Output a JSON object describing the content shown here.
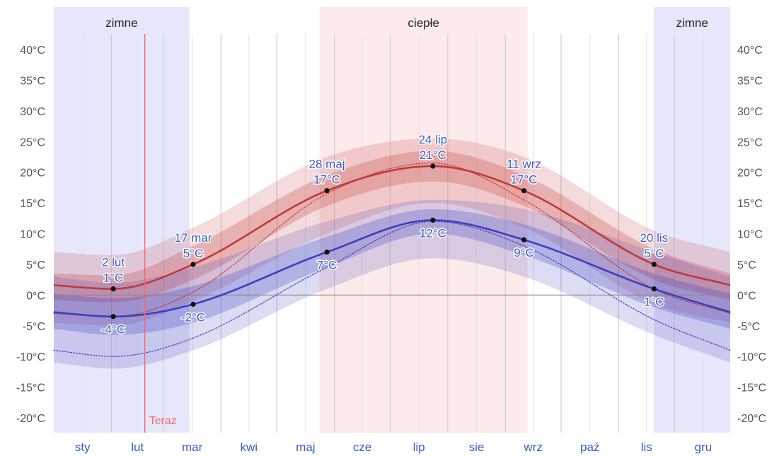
{
  "chart_data": {
    "type": "area",
    "x_unit": "day_of_year",
    "ylim": [
      -22,
      42
    ],
    "y_ticks": [
      {
        "v": 40,
        "label": "40°C"
      },
      {
        "v": 35,
        "label": "35°C"
      },
      {
        "v": 30,
        "label": "30°C"
      },
      {
        "v": 25,
        "label": "25°C"
      },
      {
        "v": 20,
        "label": "20°C"
      },
      {
        "v": 15,
        "label": "15°C"
      },
      {
        "v": 10,
        "label": "10°C"
      },
      {
        "v": 5,
        "label": "5°C"
      },
      {
        "v": 0,
        "label": "0°C"
      },
      {
        "v": -5,
        "label": "-5°C"
      },
      {
        "v": -10,
        "label": "-10°C"
      },
      {
        "v": -15,
        "label": "-15°C"
      },
      {
        "v": -20,
        "label": "-20°C"
      }
    ],
    "months": [
      "sty",
      "lut",
      "mar",
      "kwi",
      "maj",
      "cze",
      "lip",
      "sie",
      "wrz",
      "paź",
      "lis",
      "gru"
    ],
    "seasons": [
      {
        "label": "zimne",
        "start": 1,
        "end": 74,
        "color": "#e7e7fb"
      },
      {
        "label": "ciepłe",
        "start": 144,
        "end": 256,
        "color": "#fdeaea"
      },
      {
        "label": "zimne",
        "start": 324,
        "end": 365,
        "color": "#e7e7fb"
      }
    ],
    "now": {
      "label": "Teraz",
      "day": 50,
      "color": "#f06a6a"
    },
    "x": [
      1,
      33,
      76,
      148,
      205,
      254,
      324,
      365
    ],
    "series": [
      {
        "role": "high",
        "color": "#c0393b",
        "values": [
          1.6,
          1.0,
          5.0,
          17.0,
          21.0,
          17.0,
          5.0,
          1.6
        ],
        "band_inner": [
          [
            -0.8,
            3.5
          ],
          [
            -1.2,
            3.2
          ],
          [
            2.5,
            8.0
          ],
          [
            14.5,
            19.5
          ],
          [
            18.5,
            23.5
          ],
          [
            14.5,
            19.5
          ],
          [
            2.5,
            7.5
          ],
          [
            -0.8,
            3.5
          ]
        ],
        "band_outer": [
          [
            -4.5,
            7.0
          ],
          [
            -5.0,
            6.5
          ],
          [
            -1.0,
            11.0
          ],
          [
            10.0,
            22.5
          ],
          [
            15.0,
            25.5
          ],
          [
            11.0,
            22.5
          ],
          [
            -1.5,
            10.5
          ],
          [
            -4.5,
            7.0
          ]
        ],
        "dotted": [
          -3.0,
          -3.5,
          0.5,
          16.5,
          21.5,
          15.5,
          1.0,
          -3.0
        ]
      },
      {
        "role": "low",
        "color": "#3b3fbf",
        "values": [
          -2.8,
          -3.5,
          -1.5,
          7.0,
          12.2,
          9.0,
          1.0,
          -2.8
        ],
        "band_inner": [
          [
            -5.5,
            0.2
          ],
          [
            -6.5,
            -0.5
          ],
          [
            -4.5,
            1.5
          ],
          [
            4.5,
            9.5
          ],
          [
            10.0,
            14.0
          ],
          [
            6.5,
            11.5
          ],
          [
            -2.0,
            3.5
          ],
          [
            -5.5,
            0.2
          ]
        ],
        "band_outer": [
          [
            -11.0,
            3.0
          ],
          [
            -12.0,
            2.0
          ],
          [
            -9.0,
            4.5
          ],
          [
            1.0,
            12.0
          ],
          [
            6.0,
            15.5
          ],
          [
            3.0,
            14.0
          ],
          [
            -6.5,
            7.0
          ],
          [
            -11.0,
            3.0
          ]
        ],
        "dotted": [
          -9.0,
          -10.0,
          -7.0,
          4.5,
          12.0,
          8.0,
          -4.0,
          -9.0
        ]
      }
    ],
    "annotations": [
      {
        "day": 33,
        "value": 1.0,
        "lines": [
          "2 lut",
          "1°C"
        ],
        "pos": "above"
      },
      {
        "day": 33,
        "value": -3.5,
        "lines": [
          "-4°C"
        ],
        "pos": "below"
      },
      {
        "day": 76,
        "value": 5.0,
        "lines": [
          "17 mar",
          "5°C"
        ],
        "pos": "above"
      },
      {
        "day": 76,
        "value": -1.5,
        "lines": [
          "-2°C"
        ],
        "pos": "below"
      },
      {
        "day": 148,
        "value": 17.0,
        "lines": [
          "28 maj",
          "17°C"
        ],
        "pos": "above"
      },
      {
        "day": 148,
        "value": 7.0,
        "lines": [
          "7°C"
        ],
        "pos": "below"
      },
      {
        "day": 205,
        "value": 21.0,
        "lines": [
          "24 lip",
          "21°C"
        ],
        "pos": "above"
      },
      {
        "day": 205,
        "value": 12.2,
        "lines": [
          "12°C"
        ],
        "pos": "below"
      },
      {
        "day": 254,
        "value": 17.0,
        "lines": [
          "11 wrz",
          "17°C"
        ],
        "pos": "above"
      },
      {
        "day": 254,
        "value": 9.0,
        "lines": [
          "9°C"
        ],
        "pos": "below"
      },
      {
        "day": 324,
        "value": 5.0,
        "lines": [
          "20 lis",
          "5°C"
        ],
        "pos": "above"
      },
      {
        "day": 324,
        "value": 1.0,
        "lines": [
          "1°C"
        ],
        "pos": "below"
      }
    ]
  }
}
